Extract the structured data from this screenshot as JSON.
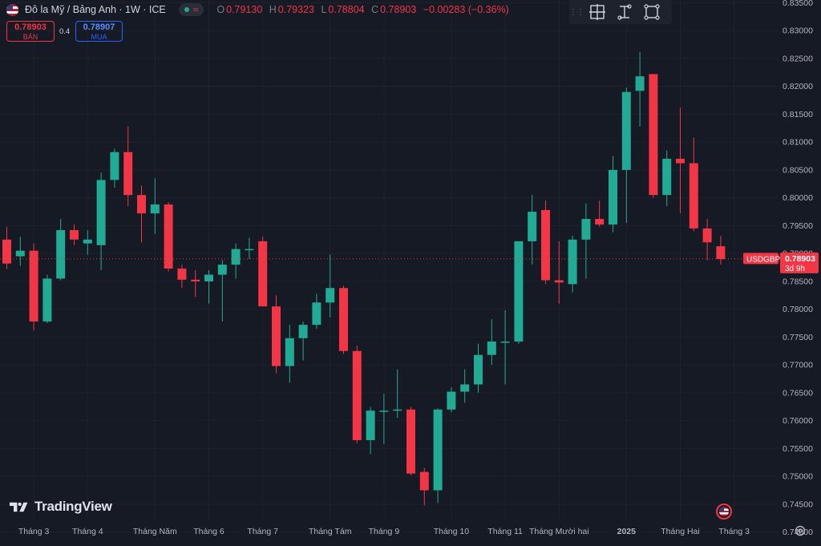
{
  "header": {
    "title": "Đô la Mỹ / Bảng Anh · 1W · ICE",
    "ohlc": [
      {
        "label": "O",
        "value": "0.79130"
      },
      {
        "label": "H",
        "value": "0.79323"
      },
      {
        "label": "L",
        "value": "0.78804"
      },
      {
        "label": "C",
        "value": "0.78903"
      },
      {
        "label": "",
        "value": "−0.00283 (−0.36%)"
      }
    ]
  },
  "trade": {
    "sell_price": "0.78903",
    "sell_label": "BÁN",
    "spread": "0.4",
    "buy_price": "0.78907",
    "buy_label": "MUA"
  },
  "brand": {
    "name": "TradingView"
  },
  "price_label": {
    "symbol": "USDGBP",
    "price": "0.78903",
    "countdown": "3d 9h"
  },
  "icons": {
    "toolbar": [
      "crosshair-box-icon",
      "text-cursor-icon",
      "fullscreen-frame-icon"
    ],
    "settings": "gear-icon",
    "event": "us-flag-icon"
  },
  "colors": {
    "up": "#22ab94",
    "down": "#f23645",
    "background": "#161a25",
    "grid": "#1e222d"
  },
  "chart_data": {
    "type": "candlestick",
    "symbol": "USDGBP",
    "interval": "1W",
    "ylim": [
      0.7375,
      0.8355
    ],
    "y_ticks": [
      "0.83500",
      "0.83000",
      "0.82500",
      "0.82000",
      "0.81500",
      "0.81000",
      "0.80500",
      "0.80000",
      "0.79500",
      "0.79000",
      "0.78500",
      "0.78000",
      "0.77500",
      "0.77000",
      "0.76500",
      "0.76000",
      "0.75500",
      "0.75000",
      "0.74500",
      "0.74000"
    ],
    "x_labels": [
      {
        "label": "Tháng 3",
        "index": 2
      },
      {
        "label": "Tháng 4",
        "index": 6
      },
      {
        "label": "Tháng Năm",
        "index": 11
      },
      {
        "label": "Tháng 6",
        "index": 15
      },
      {
        "label": "Tháng 7",
        "index": 19
      },
      {
        "label": "Tháng Tám",
        "index": 24
      },
      {
        "label": "Tháng 9",
        "index": 28
      },
      {
        "label": "Tháng 10",
        "index": 33
      },
      {
        "label": "Tháng 11",
        "index": 37
      },
      {
        "label": "Tháng Mười hai",
        "index": 41
      },
      {
        "label": "2025",
        "index": 46
      },
      {
        "label": "Tháng Hai",
        "index": 50
      },
      {
        "label": "Tháng 3",
        "index": 54
      }
    ],
    "last_price": 0.78903,
    "candles": [
      {
        "o": 0.7925,
        "h": 0.7948,
        "l": 0.7872,
        "c": 0.7882
      },
      {
        "o": 0.7895,
        "h": 0.793,
        "l": 0.7878,
        "c": 0.7905
      },
      {
        "o": 0.7905,
        "h": 0.7918,
        "l": 0.7762,
        "c": 0.7778
      },
      {
        "o": 0.7778,
        "h": 0.7862,
        "l": 0.7775,
        "c": 0.7855
      },
      {
        "o": 0.7855,
        "h": 0.7962,
        "l": 0.7852,
        "c": 0.7942
      },
      {
        "o": 0.7942,
        "h": 0.7952,
        "l": 0.7915,
        "c": 0.7925
      },
      {
        "o": 0.7918,
        "h": 0.7942,
        "l": 0.7898,
        "c": 0.7925
      },
      {
        "o": 0.7915,
        "h": 0.8045,
        "l": 0.787,
        "c": 0.8032
      },
      {
        "o": 0.8032,
        "h": 0.8088,
        "l": 0.8018,
        "c": 0.8082
      },
      {
        "o": 0.8082,
        "h": 0.8128,
        "l": 0.7985,
        "c": 0.8005
      },
      {
        "o": 0.8005,
        "h": 0.8022,
        "l": 0.792,
        "c": 0.7972
      },
      {
        "o": 0.7972,
        "h": 0.8035,
        "l": 0.7935,
        "c": 0.7988
      },
      {
        "o": 0.7988,
        "h": 0.7992,
        "l": 0.7868,
        "c": 0.7873
      },
      {
        "o": 0.7873,
        "h": 0.788,
        "l": 0.7838,
        "c": 0.7853
      },
      {
        "o": 0.7853,
        "h": 0.787,
        "l": 0.7822,
        "c": 0.785
      },
      {
        "o": 0.785,
        "h": 0.787,
        "l": 0.781,
        "c": 0.7862
      },
      {
        "o": 0.7862,
        "h": 0.7888,
        "l": 0.7778,
        "c": 0.788
      },
      {
        "o": 0.788,
        "h": 0.7918,
        "l": 0.7855,
        "c": 0.7908
      },
      {
        "o": 0.7908,
        "h": 0.7928,
        "l": 0.789,
        "c": 0.7908
      },
      {
        "o": 0.7922,
        "h": 0.793,
        "l": 0.7805,
        "c": 0.7805
      },
      {
        "o": 0.7805,
        "h": 0.7825,
        "l": 0.7685,
        "c": 0.7698
      },
      {
        "o": 0.7698,
        "h": 0.7772,
        "l": 0.7668,
        "c": 0.7748
      },
      {
        "o": 0.7748,
        "h": 0.7778,
        "l": 0.7708,
        "c": 0.7772
      },
      {
        "o": 0.7772,
        "h": 0.7828,
        "l": 0.7765,
        "c": 0.7812
      },
      {
        "o": 0.7812,
        "h": 0.7898,
        "l": 0.7785,
        "c": 0.7838
      },
      {
        "o": 0.7838,
        "h": 0.7842,
        "l": 0.772,
        "c": 0.7725
      },
      {
        "o": 0.7725,
        "h": 0.7735,
        "l": 0.756,
        "c": 0.7565
      },
      {
        "o": 0.7565,
        "h": 0.7625,
        "l": 0.754,
        "c": 0.7618
      },
      {
        "o": 0.7618,
        "h": 0.7648,
        "l": 0.7558,
        "c": 0.7618
      },
      {
        "o": 0.7618,
        "h": 0.7692,
        "l": 0.7605,
        "c": 0.762
      },
      {
        "o": 0.762,
        "h": 0.7625,
        "l": 0.7502,
        "c": 0.7505
      },
      {
        "o": 0.7508,
        "h": 0.7515,
        "l": 0.7448,
        "c": 0.7475
      },
      {
        "o": 0.7475,
        "h": 0.7622,
        "l": 0.7452,
        "c": 0.762
      },
      {
        "o": 0.762,
        "h": 0.766,
        "l": 0.7615,
        "c": 0.7652
      },
      {
        "o": 0.7652,
        "h": 0.7692,
        "l": 0.7632,
        "c": 0.7665
      },
      {
        "o": 0.7665,
        "h": 0.7738,
        "l": 0.765,
        "c": 0.7718
      },
      {
        "o": 0.7718,
        "h": 0.7782,
        "l": 0.77,
        "c": 0.7742
      },
      {
        "o": 0.7742,
        "h": 0.7798,
        "l": 0.7665,
        "c": 0.7742
      },
      {
        "o": 0.7742,
        "h": 0.7922,
        "l": 0.7738,
        "c": 0.7922
      },
      {
        "o": 0.7922,
        "h": 0.8005,
        "l": 0.788,
        "c": 0.7975
      },
      {
        "o": 0.7978,
        "h": 0.7995,
        "l": 0.7845,
        "c": 0.7852
      },
      {
        "o": 0.7852,
        "h": 0.7922,
        "l": 0.781,
        "c": 0.7848
      },
      {
        "o": 0.7845,
        "h": 0.7932,
        "l": 0.783,
        "c": 0.7925
      },
      {
        "o": 0.7925,
        "h": 0.799,
        "l": 0.7855,
        "c": 0.7962
      },
      {
        "o": 0.7962,
        "h": 0.7995,
        "l": 0.7948,
        "c": 0.7952
      },
      {
        "o": 0.7952,
        "h": 0.8075,
        "l": 0.7938,
        "c": 0.805
      },
      {
        "o": 0.805,
        "h": 0.8198,
        "l": 0.7955,
        "c": 0.819
      },
      {
        "o": 0.8192,
        "h": 0.8262,
        "l": 0.8128,
        "c": 0.8218
      },
      {
        "o": 0.8222,
        "h": 0.8222,
        "l": 0.8,
        "c": 0.8005
      },
      {
        "o": 0.8005,
        "h": 0.8085,
        "l": 0.7985,
        "c": 0.807
      },
      {
        "o": 0.807,
        "h": 0.8162,
        "l": 0.7972,
        "c": 0.8062
      },
      {
        "o": 0.8062,
        "h": 0.8108,
        "l": 0.794,
        "c": 0.7945
      },
      {
        "o": 0.7945,
        "h": 0.7962,
        "l": 0.7888,
        "c": 0.792
      },
      {
        "o": 0.7913,
        "h": 0.7932,
        "l": 0.788,
        "c": 0.789
      }
    ]
  }
}
